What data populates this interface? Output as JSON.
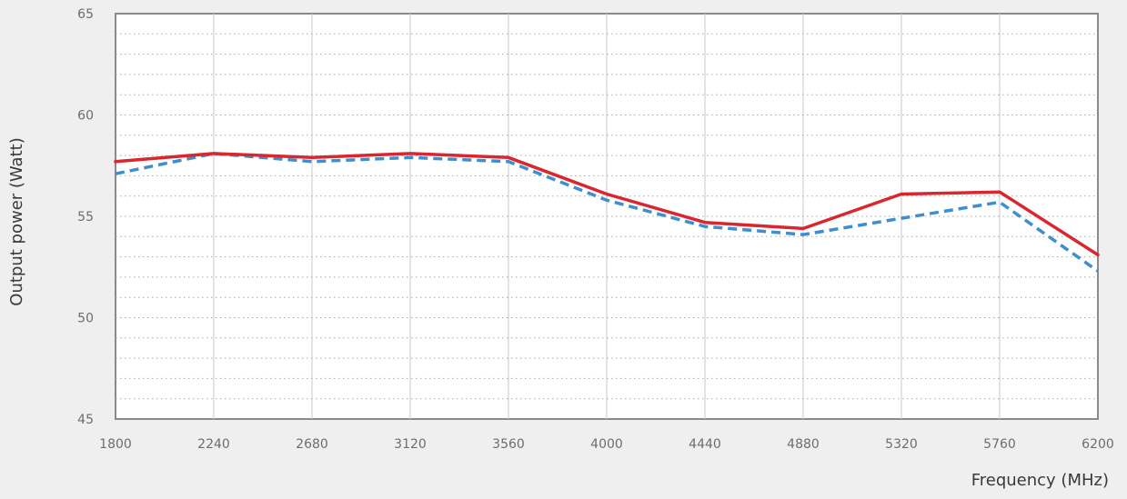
{
  "chart_data": {
    "type": "line",
    "title": "",
    "xlabel": "Frequency (MHz)",
    "ylabel": "Output power (Watt)",
    "x": [
      1800,
      2240,
      2680,
      3120,
      3560,
      4000,
      4440,
      4880,
      5320,
      5760,
      6200
    ],
    "x_tick_labels": [
      "1800",
      "2240",
      "2680",
      "3120",
      "3560",
      "4000",
      "4440",
      "4880",
      "5320",
      "5760",
      "6200"
    ],
    "y_tick_values": [
      45,
      50,
      55,
      60,
      65
    ],
    "y_tick_labels": [
      "45",
      "50",
      "55",
      "60",
      "65"
    ],
    "xlim": [
      1800,
      6200
    ],
    "ylim": [
      45,
      65
    ],
    "grid": true,
    "legend": "none",
    "series": [
      {
        "color": "#d9262f",
        "style": "solid",
        "values": [
          57.7,
          58.1,
          57.9,
          58.1,
          57.9,
          56.1,
          54.7,
          54.4,
          56.1,
          56.2,
          53.1
        ]
      },
      {
        "color": "#3f8fcf",
        "style": "dashed",
        "values": [
          57.1,
          58.1,
          57.7,
          57.9,
          57.7,
          55.8,
          54.5,
          54.1,
          54.9,
          55.7,
          52.3
        ]
      }
    ]
  }
}
